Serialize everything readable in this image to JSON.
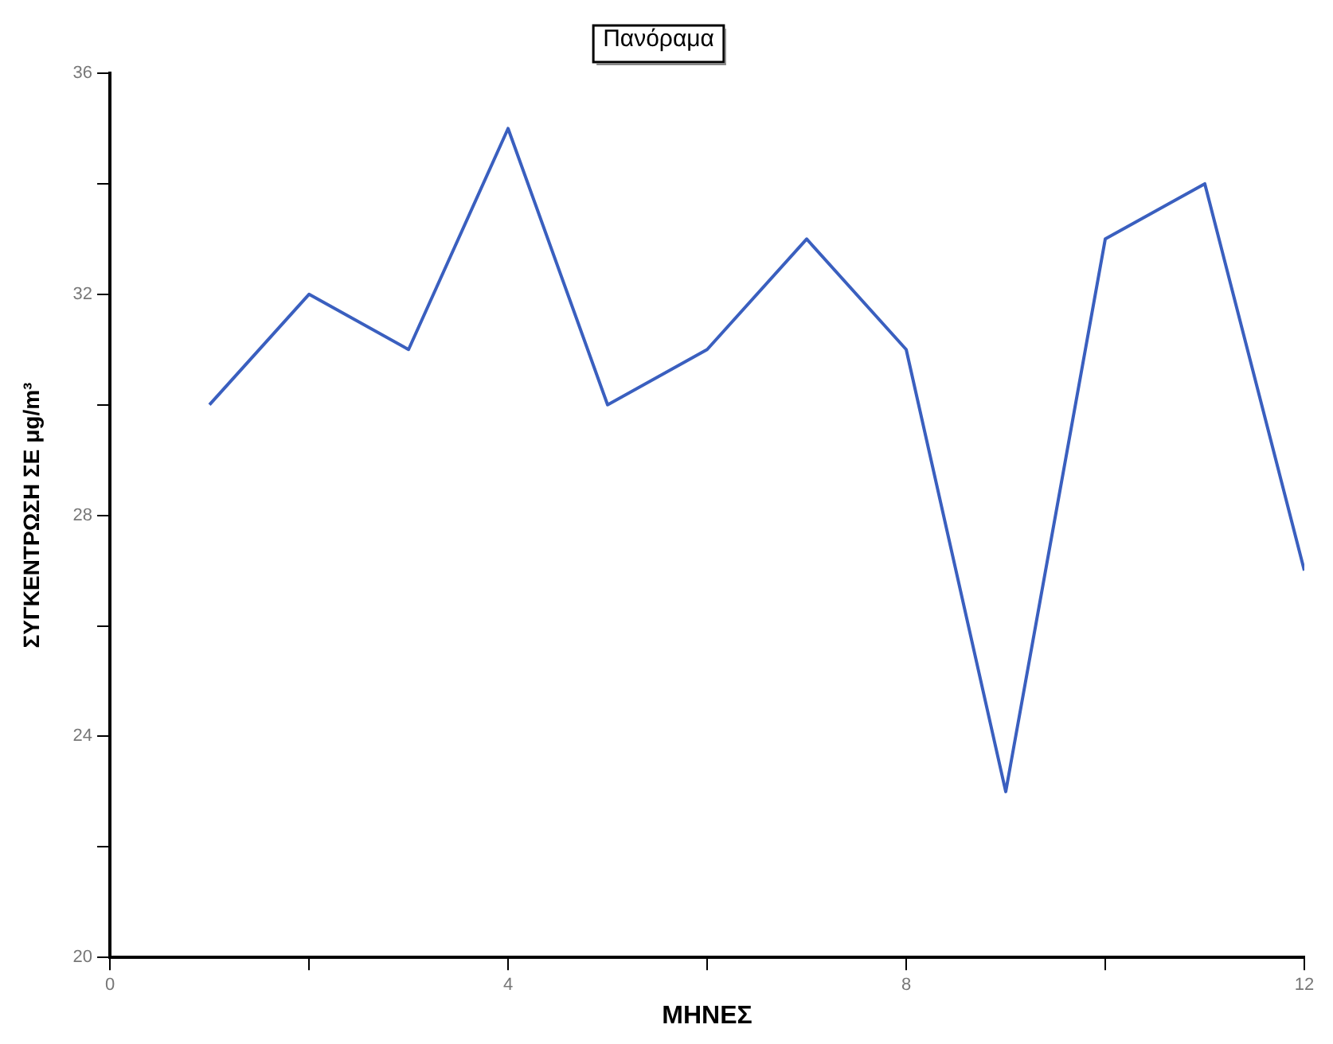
{
  "chart_data": {
    "type": "line",
    "title": "Πανόραμα",
    "xlabel": "ΜΗΝΕΣ",
    "ylabel": "ΣΥΓΚΕΝΤΡΩΣΗ ΣΕ μg/m³",
    "x": [
      1,
      2,
      3,
      4,
      5,
      6,
      7,
      8,
      9,
      10,
      11,
      12
    ],
    "series": [
      {
        "color": "#3a5fbf",
        "values": [
          30,
          32,
          31,
          35,
          30,
          31,
          33,
          31,
          23,
          33,
          34,
          27
        ]
      }
    ],
    "xlim": [
      0,
      12
    ],
    "xticks": [
      0,
      {
        "value": 2,
        "label": null
      },
      4,
      {
        "value": 6,
        "label": null
      },
      8,
      {
        "value": 10,
        "label": null
      },
      12
    ],
    "ylim": [
      20,
      36
    ],
    "yticks": [
      20,
      {
        "value": 22,
        "label": null
      },
      24,
      {
        "value": 26,
        "label": null
      },
      28,
      {
        "value": 30,
        "label": null
      },
      32,
      {
        "value": 34,
        "label": null
      },
      36
    ],
    "grid": false,
    "legend": false,
    "marker": "none",
    "line_style": "solid"
  }
}
